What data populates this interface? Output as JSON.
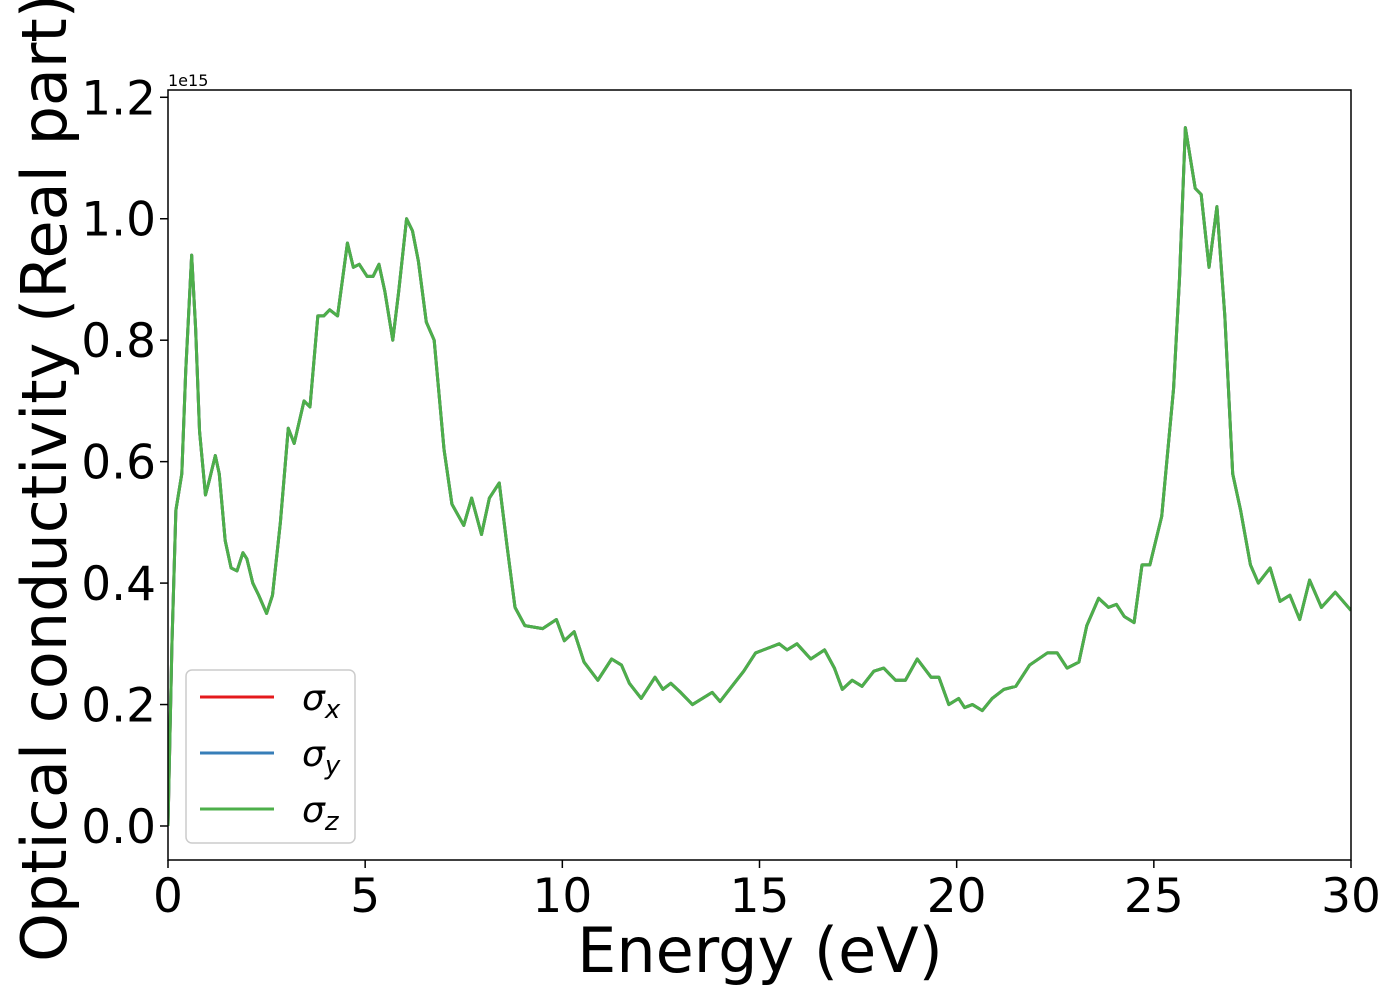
{
  "chart_data": {
    "type": "line",
    "x_label": "Energy (eV)",
    "y_label": "Optical conductivity (Real part)",
    "y_offset_label": "1e15",
    "xlim": [
      0,
      30
    ],
    "ylim": [
      -0.056,
      1.212
    ],
    "xticks": [
      0,
      5,
      10,
      15,
      20,
      25,
      30
    ],
    "yticks": [
      {
        "value": 0,
        "label": "0.0"
      },
      0.2,
      0.4,
      0.6,
      0.8,
      {
        "value": 1,
        "label": "1.0"
      },
      1.2
    ],
    "grid": false,
    "legend": "lower left",
    "x": [
      0,
      0.1,
      0.2,
      0.35,
      0.45,
      0.6,
      0.7,
      0.8,
      0.95,
      1.05,
      1.2,
      1.3,
      1.45,
      1.6,
      1.75,
      1.9,
      2.0,
      2.15,
      2.3,
      2.5,
      2.65,
      2.85,
      3.05,
      3.2,
      3.45,
      3.6,
      3.8,
      3.95,
      4.1,
      4.3,
      4.55,
      4.7,
      4.85,
      5.05,
      5.2,
      5.35,
      5.5,
      5.7,
      5.85,
      6.05,
      6.2,
      6.35,
      6.55,
      6.75,
      7.0,
      7.2,
      7.5,
      7.7,
      7.95,
      8.15,
      8.4,
      8.6,
      8.8,
      9.05,
      9.5,
      9.85,
      10.05,
      10.3,
      10.55,
      10.9,
      11.25,
      11.5,
      11.7,
      12.0,
      12.35,
      12.55,
      12.75,
      13.0,
      13.3,
      13.8,
      14.0,
      14.3,
      14.6,
      14.9,
      15.3,
      15.5,
      15.7,
      15.95,
      16.3,
      16.65,
      16.9,
      17.1,
      17.35,
      17.6,
      17.9,
      18.15,
      18.45,
      18.7,
      19.0,
      19.35,
      19.55,
      19.8,
      20.05,
      20.2,
      20.4,
      20.65,
      20.9,
      21.2,
      21.5,
      21.85,
      22.3,
      22.55,
      22.8,
      23.1,
      23.3,
      23.6,
      23.85,
      24.05,
      24.25,
      24.5,
      24.7,
      24.9,
      25.2,
      25.5,
      25.65,
      25.8,
      25.95,
      26.05,
      26.2,
      26.4,
      26.6,
      26.8,
      27.0,
      27.2,
      27.45,
      27.65,
      27.95,
      28.2,
      28.45,
      28.7,
      28.95,
      29.25,
      29.6,
      30
    ],
    "series": [
      {
        "name": "σx",
        "color": "#e41a1c",
        "values": [
          0,
          0.3,
          0.52,
          0.58,
          0.75,
          0.94,
          0.82,
          0.65,
          0.545,
          0.57,
          0.61,
          0.58,
          0.47,
          0.425,
          0.42,
          0.45,
          0.44,
          0.4,
          0.38,
          0.35,
          0.38,
          0.5,
          0.655,
          0.63,
          0.7,
          0.69,
          0.84,
          0.84,
          0.85,
          0.84,
          0.96,
          0.92,
          0.925,
          0.905,
          0.905,
          0.925,
          0.88,
          0.8,
          0.88,
          1.0,
          0.98,
          0.93,
          0.83,
          0.8,
          0.62,
          0.53,
          0.495,
          0.54,
          0.48,
          0.54,
          0.565,
          0.46,
          0.36,
          0.33,
          0.325,
          0.34,
          0.305,
          0.32,
          0.27,
          0.24,
          0.275,
          0.265,
          0.235,
          0.21,
          0.245,
          0.225,
          0.235,
          0.22,
          0.2,
          0.22,
          0.205,
          0.23,
          0.255,
          0.285,
          0.295,
          0.3,
          0.29,
          0.3,
          0.275,
          0.29,
          0.26,
          0.225,
          0.24,
          0.23,
          0.255,
          0.26,
          0.24,
          0.24,
          0.275,
          0.245,
          0.245,
          0.2,
          0.21,
          0.195,
          0.2,
          0.19,
          0.21,
          0.225,
          0.23,
          0.265,
          0.285,
          0.285,
          0.26,
          0.27,
          0.33,
          0.375,
          0.36,
          0.365,
          0.345,
          0.335,
          0.43,
          0.43,
          0.51,
          0.72,
          0.9,
          1.15,
          1.09,
          1.05,
          1.04,
          0.92,
          1.02,
          0.84,
          0.58,
          0.52,
          0.43,
          0.4,
          0.425,
          0.37,
          0.38,
          0.34,
          0.405,
          0.36,
          0.385,
          0.355
        ]
      },
      {
        "name": "σy",
        "color": "#377eb8",
        "values": [
          0,
          0.3,
          0.52,
          0.58,
          0.75,
          0.94,
          0.82,
          0.65,
          0.545,
          0.57,
          0.61,
          0.58,
          0.47,
          0.425,
          0.42,
          0.45,
          0.44,
          0.4,
          0.38,
          0.35,
          0.38,
          0.5,
          0.655,
          0.63,
          0.7,
          0.69,
          0.84,
          0.84,
          0.85,
          0.84,
          0.96,
          0.92,
          0.925,
          0.905,
          0.905,
          0.925,
          0.88,
          0.8,
          0.88,
          1.0,
          0.98,
          0.93,
          0.83,
          0.8,
          0.62,
          0.53,
          0.495,
          0.54,
          0.48,
          0.54,
          0.565,
          0.46,
          0.36,
          0.33,
          0.325,
          0.34,
          0.305,
          0.32,
          0.27,
          0.24,
          0.275,
          0.265,
          0.235,
          0.21,
          0.245,
          0.225,
          0.235,
          0.22,
          0.2,
          0.22,
          0.205,
          0.23,
          0.255,
          0.285,
          0.295,
          0.3,
          0.29,
          0.3,
          0.275,
          0.29,
          0.26,
          0.225,
          0.24,
          0.23,
          0.255,
          0.26,
          0.24,
          0.24,
          0.275,
          0.245,
          0.245,
          0.2,
          0.21,
          0.195,
          0.2,
          0.19,
          0.21,
          0.225,
          0.23,
          0.265,
          0.285,
          0.285,
          0.26,
          0.27,
          0.33,
          0.375,
          0.36,
          0.365,
          0.345,
          0.335,
          0.43,
          0.43,
          0.51,
          0.72,
          0.9,
          1.15,
          1.09,
          1.05,
          1.04,
          0.92,
          1.02,
          0.84,
          0.58,
          0.52,
          0.43,
          0.4,
          0.425,
          0.37,
          0.38,
          0.34,
          0.405,
          0.36,
          0.385,
          0.355
        ]
      },
      {
        "name": "σz",
        "color": "#4daf4a",
        "values": [
          0,
          0.3,
          0.52,
          0.58,
          0.75,
          0.94,
          0.82,
          0.65,
          0.545,
          0.57,
          0.61,
          0.58,
          0.47,
          0.425,
          0.42,
          0.45,
          0.44,
          0.4,
          0.38,
          0.35,
          0.38,
          0.5,
          0.655,
          0.63,
          0.7,
          0.69,
          0.84,
          0.84,
          0.85,
          0.84,
          0.96,
          0.92,
          0.925,
          0.905,
          0.905,
          0.925,
          0.88,
          0.8,
          0.88,
          1.0,
          0.98,
          0.93,
          0.83,
          0.8,
          0.62,
          0.53,
          0.495,
          0.54,
          0.48,
          0.54,
          0.565,
          0.46,
          0.36,
          0.33,
          0.325,
          0.34,
          0.305,
          0.32,
          0.27,
          0.24,
          0.275,
          0.265,
          0.235,
          0.21,
          0.245,
          0.225,
          0.235,
          0.22,
          0.2,
          0.22,
          0.205,
          0.23,
          0.255,
          0.285,
          0.295,
          0.3,
          0.29,
          0.3,
          0.275,
          0.29,
          0.26,
          0.225,
          0.24,
          0.23,
          0.255,
          0.26,
          0.24,
          0.24,
          0.275,
          0.245,
          0.245,
          0.2,
          0.21,
          0.195,
          0.2,
          0.19,
          0.21,
          0.225,
          0.23,
          0.265,
          0.285,
          0.285,
          0.26,
          0.27,
          0.33,
          0.375,
          0.36,
          0.365,
          0.345,
          0.335,
          0.43,
          0.43,
          0.51,
          0.72,
          0.9,
          1.15,
          1.09,
          1.05,
          1.04,
          0.92,
          1.02,
          0.84,
          0.58,
          0.52,
          0.43,
          0.4,
          0.425,
          0.37,
          0.38,
          0.34,
          0.405,
          0.36,
          0.385,
          0.355
        ]
      }
    ]
  }
}
